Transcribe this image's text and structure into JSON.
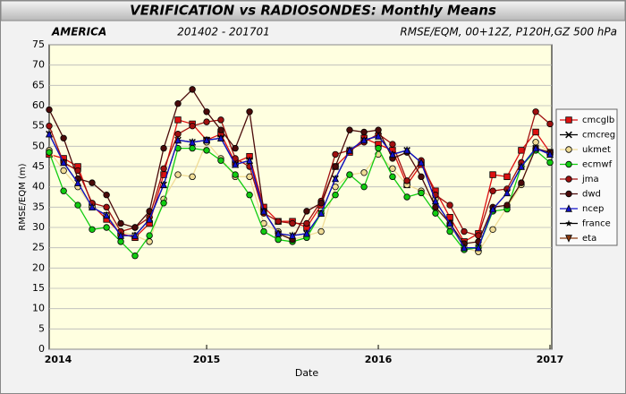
{
  "chart_data": {
    "type": "line",
    "title": "VERIFICATION vs RADIOSONDES: Monthly Means",
    "annotations": [
      "AMERICA",
      "201402 - 201701",
      "RMSE/EQM, 00+12Z, P120H,GZ 500 hPa"
    ],
    "xlabel": "Date",
    "ylabel": "RMSE/EQM (m)",
    "x": [
      2014.083,
      2014.167,
      2014.25,
      2014.333,
      2014.417,
      2014.5,
      2014.583,
      2014.667,
      2014.75,
      2014.833,
      2014.917,
      2015,
      2015.083,
      2015.167,
      2015.25,
      2015.333,
      2015.417,
      2015.5,
      2015.583,
      2015.667,
      2015.75,
      2015.833,
      2015.917,
      2016,
      2016.083,
      2016.167,
      2016.25,
      2016.333,
      2016.417,
      2016.5,
      2016.583,
      2016.667,
      2016.75,
      2016.833,
      2016.917,
      2017
    ],
    "xlim": [
      2014.083,
      2017
    ],
    "xticks": [
      2014,
      2015,
      2016,
      2017
    ],
    "ylim": [
      0,
      75
    ],
    "yticks": [
      0,
      5,
      10,
      15,
      20,
      25,
      30,
      35,
      40,
      45,
      50,
      55,
      60,
      65,
      70,
      75
    ],
    "grid": true,
    "legend": "right",
    "series": [
      {
        "name": "cmcglb",
        "color": "#dd1111",
        "marker": "square",
        "values": [
          48,
          47,
          45,
          35.5,
          32,
          28.5,
          27.5,
          31,
          43,
          56.5,
          55.5,
          51.5,
          53,
          46,
          47.5,
          35,
          31.5,
          31.5,
          30,
          35.5,
          45,
          48.5,
          52,
          50.5,
          49,
          40.5,
          45.5,
          39,
          32.5,
          26.5,
          28.5,
          43,
          42.5,
          49,
          53.5,
          48.5
        ]
      },
      {
        "name": "cmcreg",
        "color": "#000000",
        "marker": "x",
        "values": [
          53,
          46,
          41,
          35,
          33,
          28,
          28,
          32,
          40.5,
          51.5,
          51,
          51.5,
          52,
          45.5,
          46.5,
          34,
          28.5,
          28,
          28.5,
          33.5,
          42,
          49,
          51.5,
          52.5,
          48,
          49,
          46,
          36.5,
          31,
          25,
          25,
          34.5,
          38.5,
          45,
          49.5,
          48
        ]
      },
      {
        "name": "ukmet",
        "color": "#f0dc96",
        "marker": "circle",
        "values": [
          49,
          44,
          40,
          35,
          33,
          29,
          28,
          26.5,
          37,
          43,
          42.5,
          51,
          47,
          42.5,
          42.5,
          31,
          29,
          27,
          28,
          29,
          40,
          43,
          43.5,
          48,
          44.5,
          40.5,
          39,
          37,
          30.5,
          25,
          24,
          29.5,
          35,
          40.5,
          51,
          48.5
        ]
      },
      {
        "name": "ecmwf",
        "color": "#11cc11",
        "marker": "circle",
        "values": [
          48.5,
          39,
          35.5,
          29.5,
          30,
          26.5,
          23,
          28,
          36,
          49.5,
          49.5,
          49,
          46.5,
          43,
          38,
          29,
          27,
          26.5,
          27.5,
          33.5,
          38,
          43,
          40,
          49.5,
          42.5,
          37.5,
          38.5,
          33.5,
          29,
          24.5,
          25,
          34,
          34.5,
          45,
          49,
          46
        ]
      },
      {
        "name": "jma",
        "color": "#a01010",
        "marker": "circle",
        "values": [
          55,
          46,
          44,
          36,
          35,
          29,
          30,
          32.5,
          44.5,
          53,
          55,
          56,
          56.5,
          47,
          45,
          33.5,
          31.5,
          31,
          31,
          36.5,
          48,
          49,
          51,
          53,
          50.5,
          41.5,
          46.5,
          38,
          35.5,
          29,
          28,
          39,
          39.5,
          46,
          58.5,
          55.5
        ]
      },
      {
        "name": "dwd",
        "color": "#4a0a0a",
        "marker": "circle",
        "values": [
          59,
          52,
          42,
          41,
          38,
          31,
          30,
          34,
          49.5,
          60.5,
          64,
          58.5,
          54,
          49.5,
          58.5,
          34,
          28.5,
          27,
          34,
          36,
          45,
          54,
          53.5,
          54,
          47,
          48.5,
          42.5,
          35,
          31,
          26,
          26.5,
          35,
          35.5,
          41,
          49.5,
          48.5
        ]
      },
      {
        "name": "ncep",
        "color": "#1111cc",
        "marker": "triangle",
        "values": [
          53,
          46,
          41,
          35,
          33,
          28,
          28,
          32,
          40.5,
          51.5,
          51,
          51.5,
          52,
          45.5,
          46.5,
          34,
          28.5,
          28,
          28.5,
          33.5,
          42,
          49,
          51.5,
          52.5,
          48,
          49,
          46,
          36.5,
          31,
          25,
          25,
          34.5,
          38.5,
          45,
          49.5,
          48
        ]
      },
      {
        "name": "france",
        "color": "#000000",
        "marker": "star",
        "values": [
          null,
          null,
          null,
          null,
          null,
          null,
          null,
          null,
          null,
          null,
          null,
          null,
          null,
          null,
          null,
          null,
          null,
          null,
          null,
          null,
          null,
          null,
          null,
          null,
          null,
          null,
          null,
          null,
          null,
          null,
          null,
          null,
          null,
          null,
          null,
          null
        ]
      },
      {
        "name": "eta",
        "color": "#8b3a10",
        "marker": "triangle-down",
        "values": [
          null,
          null,
          null,
          null,
          null,
          null,
          null,
          null,
          null,
          null,
          null,
          null,
          null,
          null,
          null,
          null,
          null,
          null,
          null,
          null,
          null,
          null,
          null,
          null,
          null,
          null,
          null,
          null,
          null,
          null,
          null,
          null,
          null,
          null,
          null,
          null
        ]
      }
    ]
  }
}
